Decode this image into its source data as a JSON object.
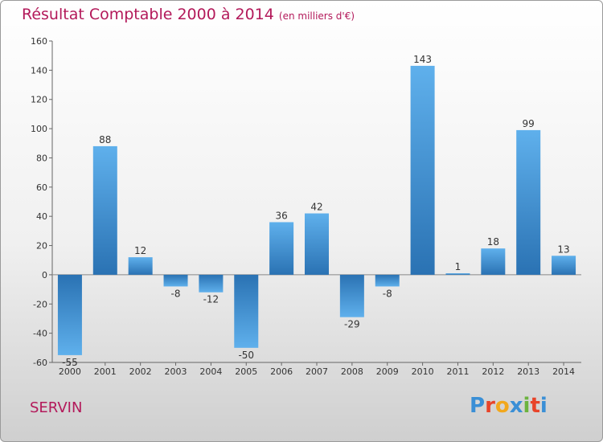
{
  "header": {
    "title": "Résultat Comptable 2000 à 2014",
    "subtitle": "(en milliers d'€)"
  },
  "footer": {
    "commune": "SERVIN",
    "logo_text": "Proxiti",
    "logo_letters": [
      "P",
      "r",
      "o",
      "x",
      "i",
      "t",
      "i"
    ],
    "logo_colors": [
      "#3a8fd6",
      "#e8442a",
      "#f2a81d",
      "#3a8fd6",
      "#6cb33f",
      "#e8442a",
      "#3a8fd6"
    ]
  },
  "chart_data": {
    "type": "bar",
    "title": "Résultat Comptable 2000 à 2014",
    "ylabel": "en milliers d'€",
    "xlabel": "",
    "categories": [
      "2000",
      "2001",
      "2002",
      "2003",
      "2004",
      "2005",
      "2006",
      "2007",
      "2008",
      "2009",
      "2010",
      "2011",
      "2012",
      "2013",
      "2014"
    ],
    "values": [
      -55,
      88,
      12,
      -8,
      -12,
      -50,
      36,
      42,
      -29,
      -8,
      143,
      1,
      18,
      99,
      13
    ],
    "ylim": [
      -60,
      160
    ],
    "yticks": [
      -60,
      -40,
      -20,
      0,
      20,
      40,
      60,
      80,
      100,
      120,
      140,
      160
    ],
    "grid": false,
    "bar_color": "#3d91d4"
  }
}
